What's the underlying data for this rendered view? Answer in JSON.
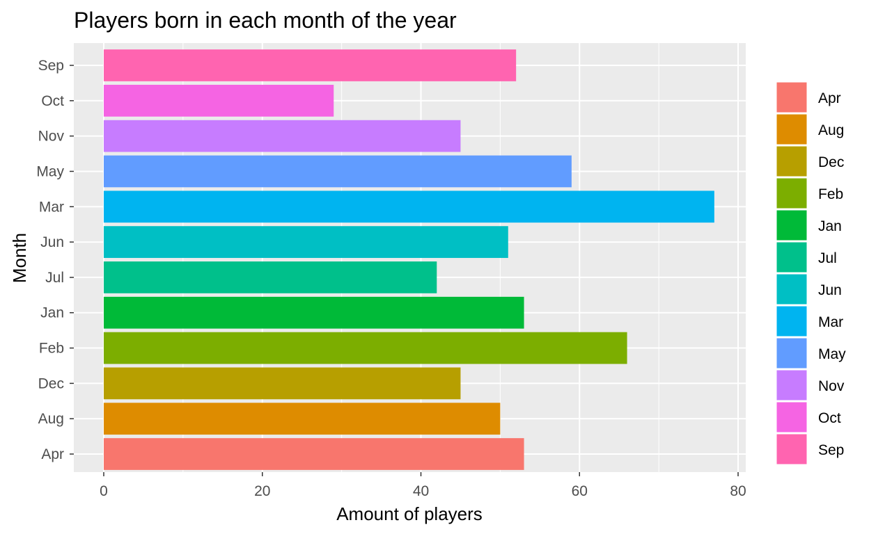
{
  "chart_data": {
    "type": "bar",
    "orientation": "horizontal",
    "title": "Players born in each month of the year",
    "xlabel": "Amount of players",
    "ylabel": "Month",
    "xlim": [
      0,
      80
    ],
    "x_ticks": [
      "0",
      "20",
      "40",
      "60",
      "80"
    ],
    "grid": true,
    "legend_placement": "right",
    "categories": [
      "Apr",
      "Aug",
      "Dec",
      "Feb",
      "Jan",
      "Jul",
      "Jun",
      "Mar",
      "May",
      "Nov",
      "Oct",
      "Sep"
    ],
    "values": [
      53,
      50,
      45,
      66,
      53,
      42,
      51,
      77,
      59,
      45,
      29,
      52
    ],
    "colors": [
      "#F8766D",
      "#DE8C00",
      "#B79F00",
      "#7CAE00",
      "#00BA38",
      "#00C08B",
      "#00BFC4",
      "#00B4F0",
      "#619CFF",
      "#C77CFF",
      "#F564E3",
      "#FF64B0"
    ],
    "legend": [
      "Apr",
      "Aug",
      "Dec",
      "Feb",
      "Jan",
      "Jul",
      "Jun",
      "Mar",
      "May",
      "Nov",
      "Oct",
      "Sep"
    ]
  }
}
